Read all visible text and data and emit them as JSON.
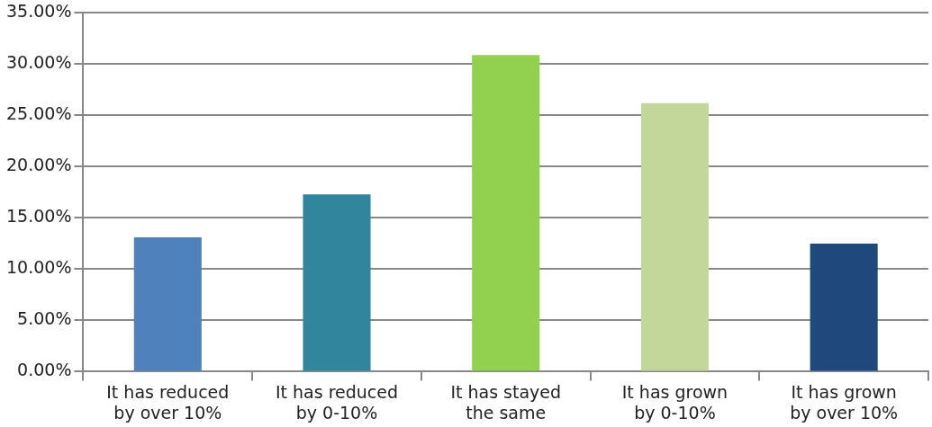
{
  "chart_data": {
    "type": "bar",
    "categories": [
      "It has reduced by over 10%",
      "It has reduced by 0-10%",
      "It has stayed the same",
      "It has grown by 0-10%",
      "It has grown by over 10%"
    ],
    "values": [
      13.1,
      17.3,
      30.9,
      26.2,
      12.5
    ],
    "colors": [
      "#4f81bd",
      "#31859c",
      "#92d050",
      "#c4d79b",
      "#1f497d"
    ],
    "ylim": [
      0,
      35
    ],
    "yticks": [
      {
        "value": 0,
        "label": "0.00%"
      },
      {
        "value": 5,
        "label": "5.00%"
      },
      {
        "value": 10,
        "label": "10.00%"
      },
      {
        "value": 15,
        "label": "15.00%"
      },
      {
        "value": 20,
        "label": "20.00%"
      },
      {
        "value": 25,
        "label": "25.00%"
      },
      {
        "value": 30,
        "label": "30.00%"
      },
      {
        "value": 35,
        "label": "35.00%"
      }
    ],
    "grid": "y",
    "legend": false
  }
}
